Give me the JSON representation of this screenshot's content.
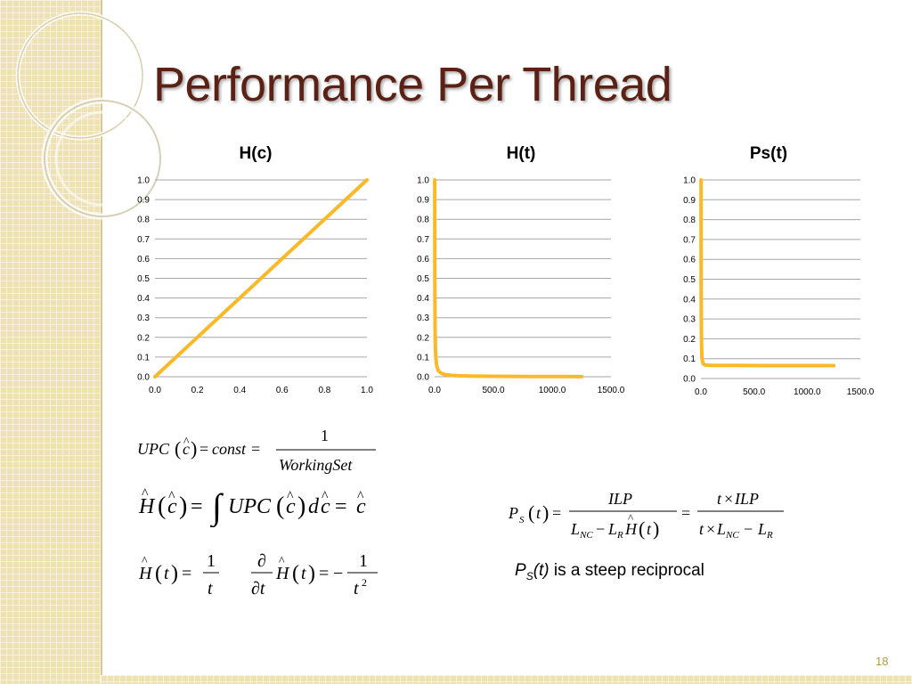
{
  "slide": {
    "title": "Performance Per Thread",
    "page_number": "18",
    "caption_text": "is a steep reciprocal",
    "caption_symbol": "P",
    "caption_subscript": "S",
    "caption_arg": "(t)"
  },
  "colors": {
    "series": "#fbb928",
    "title": "#5b2114",
    "sidebar": "#eee1b4"
  },
  "chart_data": [
    {
      "type": "line",
      "title": "H(c)",
      "x": [
        0.0,
        1.0
      ],
      "y": [
        0.0,
        1.0
      ],
      "xlim": [
        0.0,
        1.0
      ],
      "ylim": [
        0.0,
        1.0
      ],
      "xticks": [
        "0.0",
        "0.2",
        "0.4",
        "0.6",
        "0.8",
        "1.0"
      ],
      "yticks": [
        "0.0",
        "0.1",
        "0.2",
        "0.3",
        "0.4",
        "0.5",
        "0.6",
        "0.7",
        "0.8",
        "0.9",
        "1.0"
      ],
      "grid": true
    },
    {
      "type": "line",
      "title": "H(t)",
      "x": [
        1,
        1.2,
        1.5,
        2,
        3,
        4,
        5,
        7,
        10,
        15,
        20,
        30,
        40,
        60,
        80,
        100,
        150,
        200,
        300,
        500,
        800,
        1000,
        1250
      ],
      "y": [
        1.0,
        0.833,
        0.667,
        0.5,
        0.333,
        0.25,
        0.2,
        0.143,
        0.1,
        0.067,
        0.05,
        0.033,
        0.025,
        0.017,
        0.0125,
        0.01,
        0.0067,
        0.005,
        0.0033,
        0.002,
        0.00125,
        0.001,
        0.0008
      ],
      "xlim": [
        0.0,
        1500.0
      ],
      "ylim": [
        0.0,
        1.0
      ],
      "xticks": [
        "0.0",
        "500.0",
        "1000.0",
        "1500.0"
      ],
      "yticks": [
        "0.0",
        "0.1",
        "0.2",
        "0.3",
        "0.4",
        "0.5",
        "0.6",
        "0.7",
        "0.8",
        "0.9",
        "1.0"
      ],
      "grid": true
    },
    {
      "type": "line",
      "title": "Ps(t)",
      "x": [
        1,
        1.5,
        2,
        3,
        4,
        6,
        10,
        20,
        40,
        100,
        300,
        600,
        1000,
        1250
      ],
      "y": [
        1.0,
        0.667,
        0.5,
        0.333,
        0.25,
        0.167,
        0.1,
        0.075,
        0.068,
        0.066,
        0.066,
        0.065,
        0.065,
        0.065
      ],
      "xlim": [
        0.0,
        1500.0
      ],
      "ylim": [
        0.0,
        1.0
      ],
      "xticks": [
        "0.0",
        "500.0",
        "1000.0",
        "1500.0"
      ],
      "yticks": [
        "0.0",
        "0.1",
        "0.2",
        "0.3",
        "0.4",
        "0.5",
        "0.6",
        "0.7",
        "0.8",
        "0.9",
        "1.0"
      ],
      "grid": true
    }
  ]
}
